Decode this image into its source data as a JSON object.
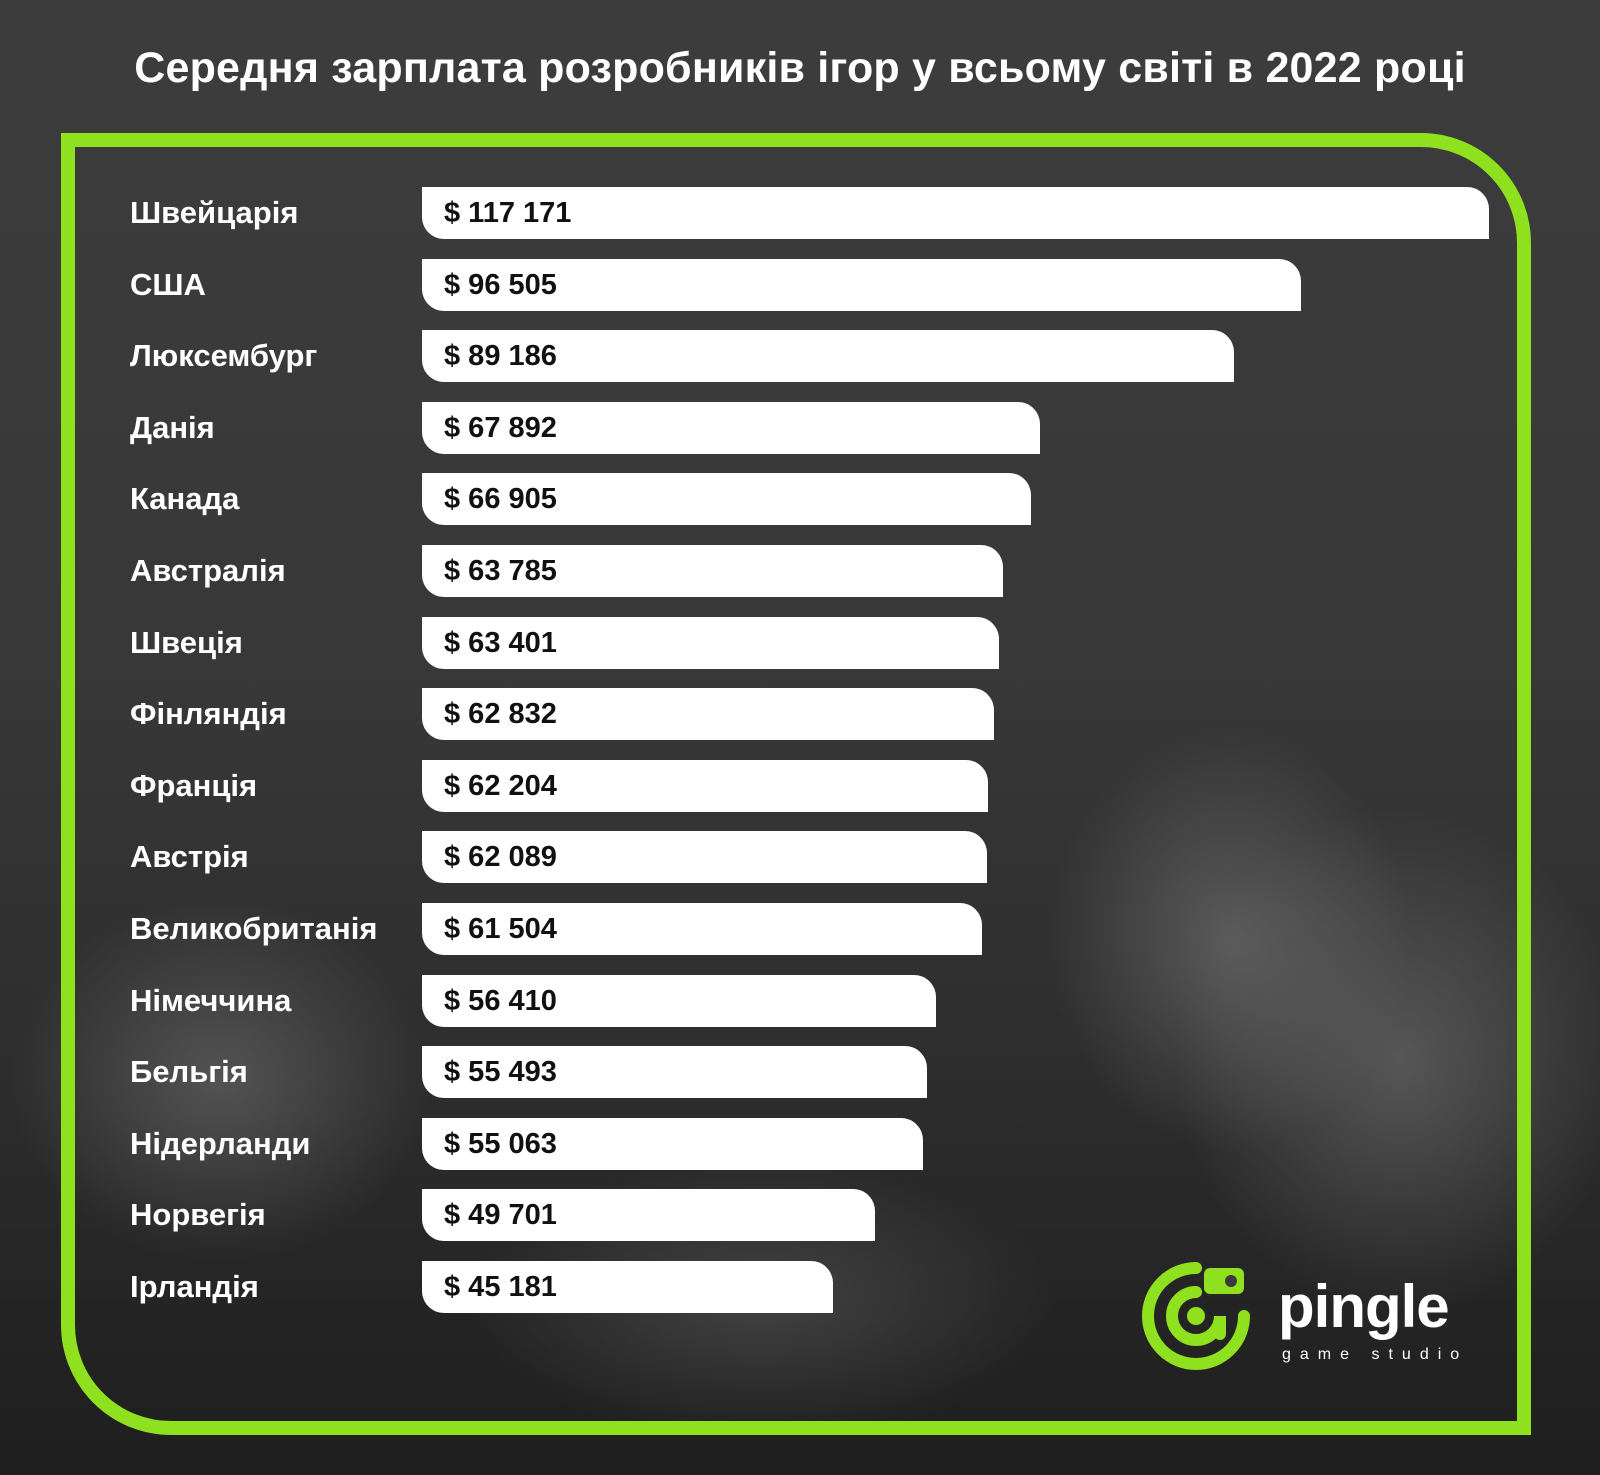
{
  "title": "Середня зарплата розробників ігор у всьому світі в 2022 році",
  "colors": {
    "accent": "#8fe01f",
    "bar": "#ffffff",
    "background": "#3b3b3b",
    "text": "#ffffff"
  },
  "chart_data": {
    "type": "bar",
    "orientation": "horizontal",
    "title": "Середня зарплата розробників ігор у всьому світі в 2022 році",
    "categories": [
      "Швейцарія",
      "США",
      "Люксембург",
      "Данія",
      "Канада",
      "Австралія",
      "Швеція",
      "Фінляндія",
      "Франція",
      "Австрія",
      "Великобританія",
      "Німеччина",
      "Бельгія",
      "Нідерланди",
      "Норвегія",
      "Ірландія"
    ],
    "values": [
      117171,
      96505,
      89186,
      67892,
      66905,
      63785,
      63401,
      62832,
      62204,
      62089,
      61504,
      56410,
      55493,
      55063,
      49701,
      45181
    ],
    "value_labels": [
      "$ 117 171",
      "$ 96 505",
      "$ 89 186",
      "$ 67 892",
      "$ 66 905",
      "$ 63 785",
      "$ 63 401",
      "$ 62 832",
      "$ 62 204",
      "$ 62 089",
      "$ 61 504",
      "$ 56 410",
      "$ 55 493",
      "$ 55 063",
      "$ 49 701",
      "$ 45 181"
    ],
    "xlabel": "",
    "ylabel": "",
    "grid": false,
    "legend": "none"
  },
  "logo": {
    "name": "pingle",
    "subtitle": "game studio",
    "icon": "chameleon-icon"
  }
}
